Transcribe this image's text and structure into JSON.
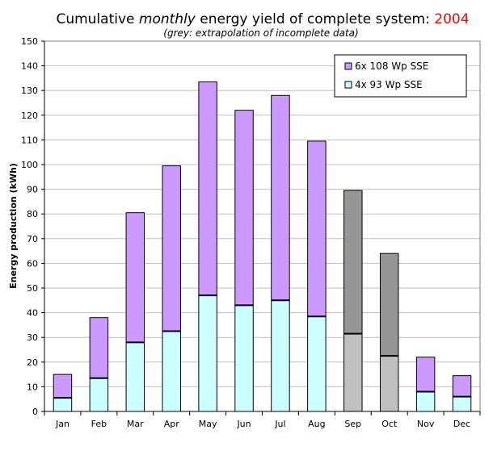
{
  "chart_data": {
    "type": "bar",
    "stacked": true,
    "title_prefix": "Cumulative ",
    "title_emph": "monthly",
    "title_suffix": " energy yield of complete system: ",
    "title_year": "2004",
    "subtitle": "(grey: extrapolation of incomplete data)",
    "ylabel": "Energy production (kWh)",
    "xlabel": "",
    "ylim": [
      0,
      150
    ],
    "ytick_step": 10,
    "grid": true,
    "legend_position": "top-right",
    "categories": [
      "Jan",
      "Feb",
      "Mar",
      "Apr",
      "May",
      "Jun",
      "Jul",
      "Aug",
      "Sep",
      "Oct",
      "Nov",
      "Dec"
    ],
    "series": [
      {
        "name": "4x 93 Wp SSE",
        "values": [
          5.5,
          13.5,
          28,
          32.5,
          47,
          43,
          45,
          38.5,
          31.5,
          22.5,
          8,
          6
        ]
      },
      {
        "name": "6x 108 Wp SSE",
        "values": [
          9.5,
          24.5,
          52.5,
          67,
          86.5,
          79,
          83,
          71,
          58,
          41.5,
          14,
          8.5
        ]
      }
    ],
    "extrapolated_categories": [
      "Sep",
      "Oct"
    ],
    "colors": {
      "series_1": "#ccffff",
      "series_2": "#cc99ff",
      "extrapolated_series_1": "#c0c0c0",
      "extrapolated_series_2": "#969696",
      "title_year": "#ff0000",
      "grid": "#c0c0c0"
    }
  }
}
